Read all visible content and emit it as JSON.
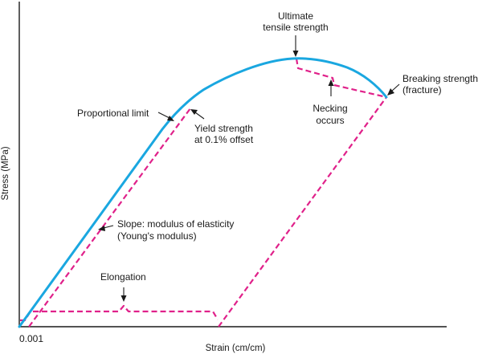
{
  "axes": {
    "x_label": "Strain (cm/cm)",
    "y_label": "Stress (MPa)",
    "x_tick": "0.001"
  },
  "labels": {
    "ultimate_line1": "Ultimate",
    "ultimate_line2": "tensile strength",
    "breaking_line1": "Breaking strength",
    "breaking_line2": "(fracture)",
    "necking_line1": "Necking",
    "necking_line2": "occurs",
    "proportional": "Proportional limit",
    "yield_line1": "Yield strength",
    "yield_line2": "at 0.1% offset",
    "slope_line1": "Slope: modulus of elasticity",
    "slope_line2": "(Young's modulus)",
    "elongation": "Elongation"
  },
  "colors": {
    "curve": "#1aa7e0",
    "construction_lines": "#e0218a",
    "axes": "#1a1a1a"
  }
}
